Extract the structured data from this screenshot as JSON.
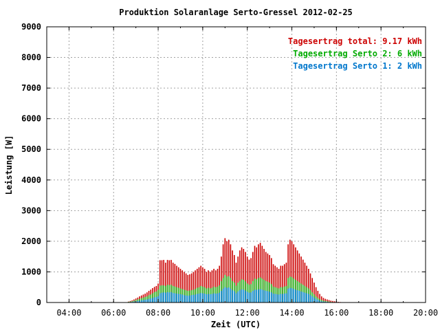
{
  "chart_data": {
    "type": "bar",
    "title": "Produktion Solaranlage Serto-Gressel 2012-02-25",
    "xlabel": "Zeit (UTC)",
    "ylabel": "Leistung [W]",
    "xlim": [
      "03:00",
      "20:00"
    ],
    "ylim": [
      0,
      9000
    ],
    "x_ticks": [
      "04:00",
      "06:00",
      "08:00",
      "10:00",
      "12:00",
      "14:00",
      "16:00",
      "18:00",
      "20:00"
    ],
    "y_ticks": [
      "0",
      "1000",
      "2000",
      "3000",
      "4000",
      "5000",
      "6000",
      "7000",
      "8000",
      "9000"
    ],
    "grid": true,
    "stacked": true,
    "legend_position": "top-right",
    "legend": [
      {
        "text": "Tagesertrag total: 9.17 kWh",
        "color": "#cc0000"
      },
      {
        "text": "Tagesertrag Serto 2: 6 kWh",
        "color": "#00aa00"
      },
      {
        "text": "Tagesertrag Serto 1: 2 kWh",
        "color": "#0077cc"
      }
    ],
    "series_colors": {
      "serto1": "#0088dd",
      "serto2": "#22bb22",
      "total": "#cc0000"
    },
    "x": [
      "06:40",
      "06:45",
      "06:50",
      "06:55",
      "07:00",
      "07:05",
      "07:10",
      "07:15",
      "07:20",
      "07:25",
      "07:30",
      "07:35",
      "07:40",
      "07:45",
      "07:50",
      "07:55",
      "08:00",
      "08:05",
      "08:10",
      "08:15",
      "08:20",
      "08:25",
      "08:30",
      "08:35",
      "08:40",
      "08:45",
      "08:50",
      "08:55",
      "09:00",
      "09:05",
      "09:10",
      "09:15",
      "09:20",
      "09:25",
      "09:30",
      "09:35",
      "09:40",
      "09:45",
      "09:50",
      "09:55",
      "10:00",
      "10:05",
      "10:10",
      "10:15",
      "10:20",
      "10:25",
      "10:30",
      "10:35",
      "10:40",
      "10:45",
      "10:50",
      "10:55",
      "11:00",
      "11:05",
      "11:10",
      "11:15",
      "11:20",
      "11:25",
      "11:30",
      "11:35",
      "11:40",
      "11:45",
      "11:50",
      "11:55",
      "12:00",
      "12:05",
      "12:10",
      "12:15",
      "12:20",
      "12:25",
      "12:30",
      "12:35",
      "12:40",
      "12:45",
      "12:50",
      "12:55",
      "13:00",
      "13:05",
      "13:10",
      "13:15",
      "13:20",
      "13:25",
      "13:30",
      "13:35",
      "13:40",
      "13:45",
      "13:50",
      "13:55",
      "14:00",
      "14:05",
      "14:10",
      "14:15",
      "14:20",
      "14:25",
      "14:30",
      "14:35",
      "14:40",
      "14:45",
      "14:50",
      "14:55",
      "15:00",
      "15:05",
      "15:10",
      "15:15",
      "15:20",
      "15:25",
      "15:30",
      "15:35",
      "15:40",
      "15:45",
      "15:50",
      "15:55",
      "16:00",
      "16:05",
      "16:10",
      "16:15",
      "16:20",
      "16:25",
      "16:30",
      "16:35",
      "16:40"
    ],
    "series": [
      {
        "key": "serto1",
        "values": [
          10,
          15,
          20,
          30,
          40,
          50,
          60,
          70,
          80,
          90,
          100,
          120,
          130,
          150,
          170,
          180,
          210,
          300,
          320,
          330,
          320,
          340,
          330,
          340,
          310,
          300,
          290,
          280,
          270,
          260,
          240,
          230,
          220,
          230,
          240,
          250,
          260,
          280,
          290,
          310,
          300,
          290,
          270,
          280,
          270,
          280,
          300,
          290,
          300,
          320,
          380,
          450,
          500,
          480,
          490,
          450,
          400,
          370,
          300,
          360,
          400,
          430,
          420,
          390,
          350,
          320,
          330,
          380,
          420,
          410,
          430,
          440,
          420,
          400,
          380,
          370,
          350,
          330,
          290,
          280,
          270,
          260,
          280,
          280,
          290,
          300,
          450,
          480,
          470,
          440,
          420,
          400,
          380,
          360,
          340,
          320,
          300,
          280,
          240,
          200,
          160,
          120,
          90,
          60,
          40,
          30,
          25,
          20,
          15,
          10,
          10,
          5,
          5,
          5,
          5,
          5,
          3,
          2,
          1,
          0,
          0
        ]
      },
      {
        "key": "serto2",
        "values": [
          20,
          30,
          40,
          60,
          80,
          100,
          120,
          140,
          160,
          180,
          200,
          240,
          260,
          300,
          340,
          360,
          420,
          550,
          560,
          560,
          540,
          580,
          570,
          580,
          540,
          520,
          500,
          480,
          460,
          440,
          420,
          400,
          380,
          390,
          400,
          420,
          440,
          480,
          500,
          540,
          520,
          500,
          460,
          480,
          460,
          480,
          520,
          500,
          520,
          560,
          700,
          800,
          900,
          850,
          860,
          800,
          700,
          650,
          550,
          650,
          700,
          760,
          740,
          690,
          620,
          580,
          600,
          700,
          780,
          760,
          800,
          820,
          780,
          740,
          700,
          680,
          650,
          600,
          520,
          500,
          480,
          460,
          500,
          500,
          520,
          540,
          800,
          850,
          830,
          780,
          740,
          700,
          660,
          620,
          580,
          540,
          500,
          460,
          400,
          330,
          270,
          200,
          150,
          110,
          80,
          60,
          50,
          40,
          30,
          20,
          15,
          10,
          8,
          6,
          4,
          3,
          2,
          1,
          0,
          0,
          0
        ]
      },
      {
        "key": "total",
        "values": [
          30,
          50,
          70,
          100,
          130,
          160,
          200,
          230,
          260,
          290,
          330,
          380,
          420,
          470,
          510,
          540,
          620,
          1380,
          1380,
          1390,
          1300,
          1390,
          1380,
          1390,
          1300,
          1260,
          1200,
          1150,
          1100,
          1050,
          1000,
          950,
          900,
          920,
          950,
          1000,
          1050,
          1100,
          1150,
          1200,
          1150,
          1100,
          1000,
          1050,
          1000,
          1050,
          1100,
          1050,
          1100,
          1200,
          1500,
          1900,
          2100,
          2000,
          2050,
          1900,
          1700,
          1550,
          1300,
          1500,
          1700,
          1800,
          1750,
          1650,
          1500,
          1400,
          1450,
          1650,
          1850,
          1800,
          1900,
          1950,
          1850,
          1750,
          1650,
          1600,
          1550,
          1450,
          1250,
          1200,
          1150,
          1100,
          1200,
          1200,
          1250,
          1300,
          1900,
          2050,
          2000,
          1900,
          1800,
          1700,
          1600,
          1500,
          1400,
          1300,
          1200,
          1100,
          950,
          800,
          650,
          500,
          380,
          280,
          200,
          150,
          120,
          100,
          80,
          60,
          50,
          40,
          30,
          20,
          15,
          10,
          8,
          5,
          3,
          2,
          0
        ]
      }
    ]
  }
}
